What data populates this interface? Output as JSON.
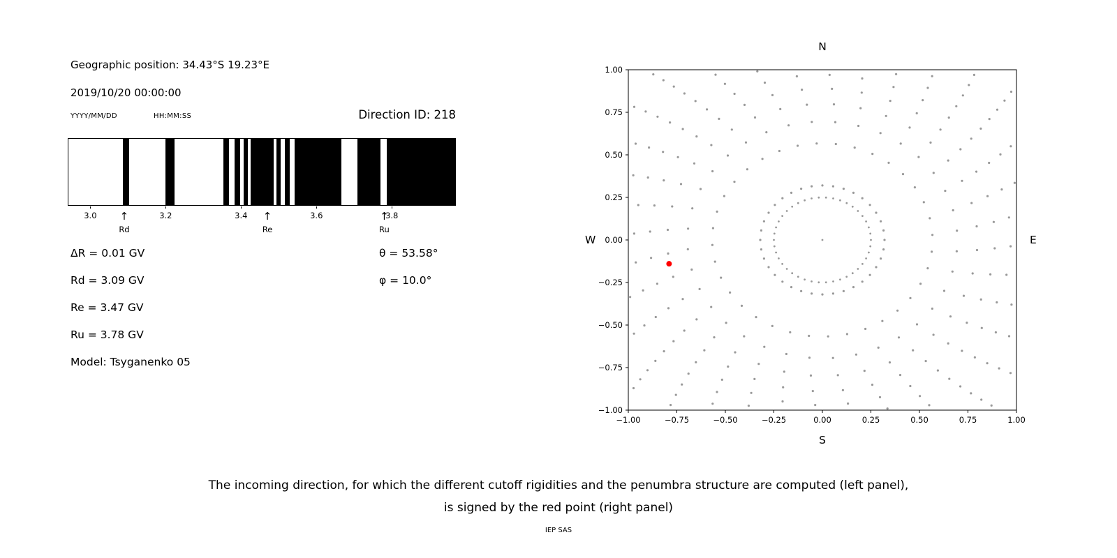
{
  "page": {
    "background": "#ffffff"
  },
  "left_panel": {
    "geographic_position": "Geographic position: 34.43°S 19.23°E",
    "datetime": "2019/10/20 00:00:00",
    "date_format_label": "YYYY/MM/DD",
    "time_format_label": "HH:MM:SS",
    "direction_id": "Direction ID: 218",
    "value_lines": [
      "ΔR = 0.01 GV",
      "Rd = 3.09 GV",
      "Re = 3.47 GV",
      "Ru = 3.78 GV",
      "Model: Tsyganenko 05"
    ],
    "angle_lines": [
      "θ = 53.58°",
      "φ = 10.0°"
    ]
  },
  "caption": {
    "line1": "The incoming direction, for which the different cutoff rigidities and the penumbra structure are computed (left panel),",
    "line2": "is signed by the red point (right panel)",
    "credit": "IEP SAS"
  },
  "chart_data": [
    {
      "id": "penumbra-structure",
      "type": "bar",
      "description": "Penumbra structure: black bands mark forbidden rigidity intervals in GV between Rd and Ru",
      "x_range": [
        2.94,
        3.97
      ],
      "xticks": [
        3.0,
        3.2,
        3.4,
        3.6,
        3.8
      ],
      "bar_color": "#000000",
      "forbidden_bands_gv": [
        [
          3.085,
          3.102
        ],
        [
          3.198,
          3.222
        ],
        [
          3.352,
          3.368
        ],
        [
          3.382,
          3.398
        ],
        [
          3.406,
          3.418
        ],
        [
          3.425,
          3.487
        ],
        [
          3.494,
          3.506
        ],
        [
          3.517,
          3.53
        ],
        [
          3.542,
          3.667
        ],
        [
          3.71,
          3.772
        ],
        [
          3.787,
          3.97
        ]
      ],
      "markers": [
        {
          "label": "Rd",
          "value_gv": 3.09
        },
        {
          "label": "Re",
          "value_gv": 3.47
        },
        {
          "label": "Ru",
          "value_gv": 3.78
        }
      ]
    },
    {
      "id": "arrival-direction-map",
      "type": "scatter",
      "description": "Sky map of incoming directions; grey dotted radial spokes with inner ring, red point marks the computed direction ID 218",
      "xlim": [
        -1,
        1
      ],
      "ylim": [
        -1,
        1
      ],
      "xticks": [
        -1,
        -0.75,
        -0.5,
        -0.25,
        0,
        0.25,
        0.5,
        0.75,
        1
      ],
      "yticks": [
        -1,
        -0.75,
        -0.5,
        -0.25,
        0,
        0.25,
        0.5,
        0.75,
        1
      ],
      "compass": {
        "top": "N",
        "bottom": "S",
        "left": "W",
        "right": "E"
      },
      "grid": false,
      "dot_color": "#999999",
      "center_dot": true,
      "inner_ring": {
        "radius": 0.25,
        "dot_count": 42
      },
      "spoke_field": {
        "spoke_count": 36,
        "start_radius": 0.32,
        "end_radius": 1.42,
        "dots_per_spoke": 13,
        "curvature_deg": 12,
        "tip_density_power": 0.6
      },
      "red_point": {
        "x": -0.79,
        "y": -0.14,
        "color": "#ff0000"
      }
    }
  ]
}
